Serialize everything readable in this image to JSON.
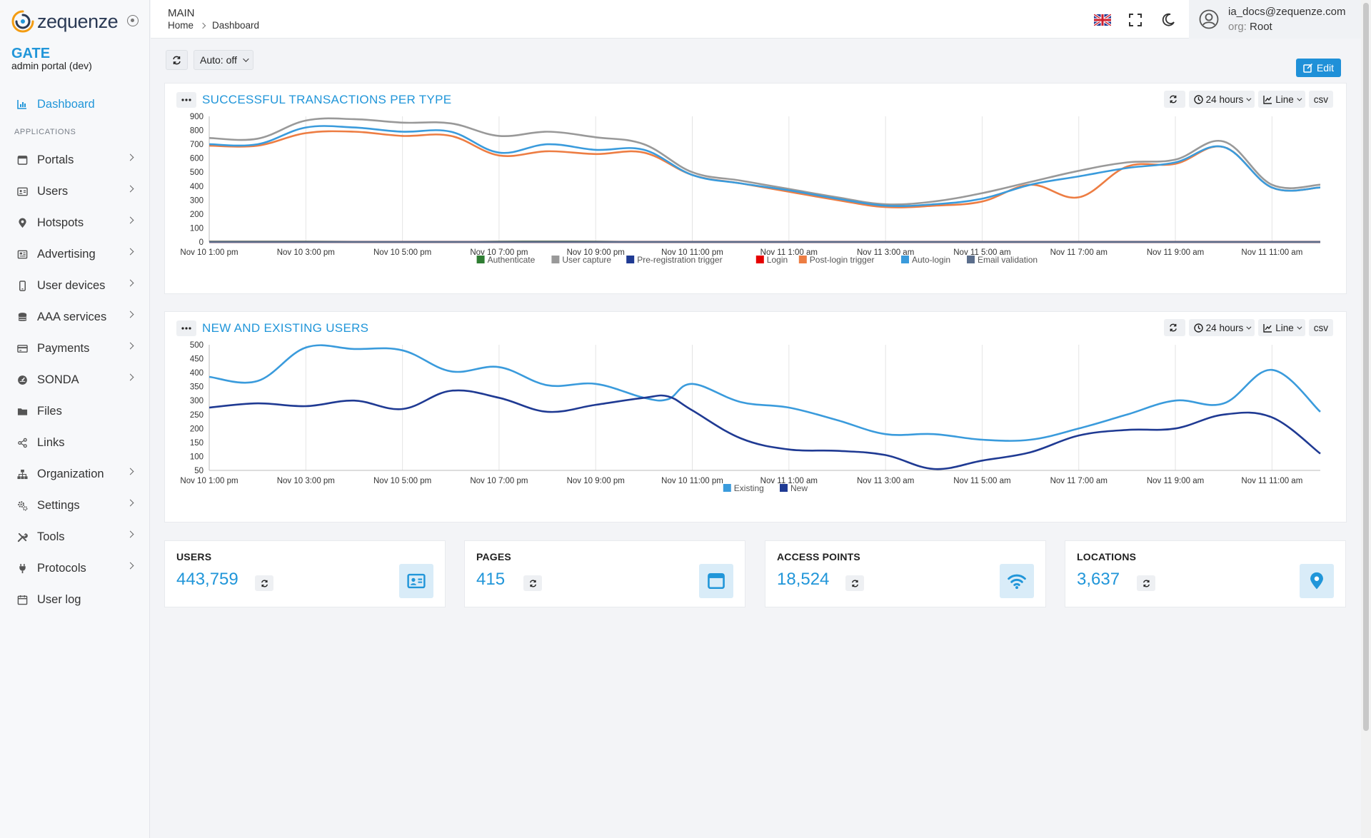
{
  "app": {
    "logo_text": "zequenze",
    "gate_title": "GATE",
    "portal_subtitle": "admin portal (dev)"
  },
  "sidebar": {
    "dashboard_label": "Dashboard",
    "section_label": "APPLICATIONS",
    "items": [
      {
        "label": "Portals",
        "icon": "window-icon"
      },
      {
        "label": "Users",
        "icon": "id-card-icon"
      },
      {
        "label": "Hotspots",
        "icon": "map-pin-icon"
      },
      {
        "label": "Advertising",
        "icon": "newspaper-icon"
      },
      {
        "label": "User devices",
        "icon": "mobile-icon"
      },
      {
        "label": "AAA services",
        "icon": "database-icon"
      },
      {
        "label": "Payments",
        "icon": "credit-card-icon"
      },
      {
        "label": "SONDA",
        "icon": "gauge-icon"
      },
      {
        "label": "Files",
        "icon": "folder-icon"
      },
      {
        "label": "Links",
        "icon": "share-icon"
      },
      {
        "label": "Organization",
        "icon": "sitemap-icon"
      },
      {
        "label": "Settings",
        "icon": "gears-icon"
      },
      {
        "label": "Tools",
        "icon": "tools-icon"
      },
      {
        "label": "Protocols",
        "icon": "plug-icon"
      },
      {
        "label": "User log",
        "icon": "calendar-icon"
      }
    ]
  },
  "header": {
    "section": "MAIN",
    "breadcrumb_home": "Home",
    "breadcrumb_current": "Dashboard",
    "user_email": "ia_docs@zequenze.com",
    "org_key": "org:",
    "org_value": "Root"
  },
  "toolbar": {
    "auto_label": "Auto: off",
    "edit_label": "Edit"
  },
  "controls": {
    "range_label": "24 hours",
    "type_label": "Line",
    "csv_label": "csv"
  },
  "chart_data": [
    {
      "type": "line",
      "title": "SUCCESSFUL TRANSACTIONS PER TYPE",
      "x_tick_labels": [
        "Nov 10 1:00 pm",
        "Nov 10 3:00 pm",
        "Nov 10 5:00 pm",
        "Nov 10 7:00 pm",
        "Nov 10 9:00 pm",
        "Nov 10 11:00 pm",
        "Nov 11 1:00 am",
        "Nov 11 3:00 am",
        "Nov 11 5:00 am",
        "Nov 11 7:00 am",
        "Nov 11 9:00 am",
        "Nov 11 11:00 am"
      ],
      "y_ticks": [
        0,
        100,
        200,
        300,
        400,
        500,
        600,
        700,
        800,
        900
      ],
      "ylim": [
        0,
        900
      ],
      "x_hours": [
        0,
        1,
        2,
        3,
        4,
        5,
        6,
        7,
        8,
        9,
        10,
        11,
        12,
        13,
        14,
        15,
        16,
        17,
        18,
        19,
        20,
        21,
        22,
        23
      ],
      "legend": "bottom",
      "series": [
        {
          "name": "Authenticate",
          "color": "#2e7d32",
          "values": [
            2,
            2,
            2,
            1,
            1,
            1,
            2,
            3,
            2,
            1,
            1,
            1,
            1,
            1,
            1,
            1,
            1,
            1,
            1,
            1,
            1,
            1,
            1,
            1
          ]
        },
        {
          "name": "User capture",
          "color": "#999999",
          "values": [
            745,
            740,
            870,
            880,
            855,
            850,
            760,
            790,
            750,
            700,
            500,
            440,
            380,
            320,
            270,
            290,
            350,
            430,
            510,
            570,
            590,
            720,
            410,
            410
          ]
        },
        {
          "name": "Pre-registration trigger",
          "color": "#1f3a93",
          "values": [
            0,
            0,
            0,
            0,
            0,
            0,
            0,
            0,
            0,
            0,
            0,
            0,
            0,
            0,
            0,
            0,
            0,
            0,
            0,
            0,
            0,
            0,
            0,
            0
          ]
        },
        {
          "name": "Login",
          "color": "#e60000",
          "values": [
            0,
            0,
            0,
            0,
            0,
            0,
            0,
            0,
            0,
            0,
            0,
            0,
            0,
            0,
            0,
            0,
            0,
            0,
            0,
            0,
            0,
            0,
            0,
            0
          ]
        },
        {
          "name": "Post-login trigger",
          "color": "#ed7d43",
          "values": [
            690,
            690,
            780,
            790,
            760,
            760,
            620,
            650,
            630,
            640,
            480,
            420,
            360,
            300,
            250,
            260,
            290,
            410,
            320,
            540,
            560,
            680,
            390,
            390
          ]
        },
        {
          "name": "Auto-login",
          "color": "#3a9bdc",
          "values": [
            700,
            700,
            820,
            820,
            790,
            790,
            640,
            700,
            660,
            660,
            480,
            420,
            370,
            310,
            260,
            270,
            310,
            410,
            470,
            530,
            570,
            680,
            390,
            390
          ]
        },
        {
          "name": "Email validation",
          "color": "#5b6e8c",
          "values": [
            0,
            0,
            0,
            0,
            0,
            0,
            0,
            0,
            0,
            0,
            0,
            0,
            0,
            0,
            0,
            0,
            0,
            0,
            0,
            0,
            0,
            0,
            0,
            0
          ]
        }
      ]
    },
    {
      "type": "line",
      "title": "NEW AND EXISTING USERS",
      "x_tick_labels": [
        "Nov 10 1:00 pm",
        "Nov 10 3:00 pm",
        "Nov 10 5:00 pm",
        "Nov 10 7:00 pm",
        "Nov 10 9:00 pm",
        "Nov 10 11:00 pm",
        "Nov 11 1:00 am",
        "Nov 11 3:00 am",
        "Nov 11 5:00 am",
        "Nov 11 7:00 am",
        "Nov 11 9:00 am",
        "Nov 11 11:00 am"
      ],
      "y_ticks": [
        50,
        100,
        150,
        200,
        250,
        300,
        350,
        400,
        450,
        500
      ],
      "ylim": [
        50,
        500
      ],
      "x_hours": [
        0,
        1,
        2,
        3,
        4,
        5,
        6,
        7,
        8,
        9,
        9.5,
        10,
        11,
        12,
        13,
        14,
        15,
        16,
        17,
        18,
        19,
        20,
        21,
        22,
        23
      ],
      "legend": "bottom",
      "series": [
        {
          "name": "Existing",
          "color": "#3a9bdc",
          "values": [
            385,
            370,
            490,
            485,
            480,
            405,
            420,
            355,
            360,
            310,
            305,
            360,
            295,
            275,
            230,
            180,
            180,
            160,
            160,
            200,
            250,
            300,
            290,
            410,
            260
          ]
        },
        {
          "name": "New",
          "color": "#1f3a93",
          "values": [
            275,
            290,
            280,
            300,
            270,
            335,
            310,
            260,
            285,
            310,
            315,
            265,
            165,
            125,
            120,
            105,
            55,
            85,
            115,
            175,
            195,
            200,
            250,
            240,
            110
          ]
        }
      ]
    }
  ],
  "stats": [
    {
      "label": "USERS",
      "value": "443,759",
      "icon": "id-card-icon"
    },
    {
      "label": "PAGES",
      "value": "415",
      "icon": "window-icon"
    },
    {
      "label": "ACCESS POINTS",
      "value": "18,524",
      "icon": "wifi-icon"
    },
    {
      "label": "LOCATIONS",
      "value": "3,637",
      "icon": "map-pin-icon"
    }
  ]
}
